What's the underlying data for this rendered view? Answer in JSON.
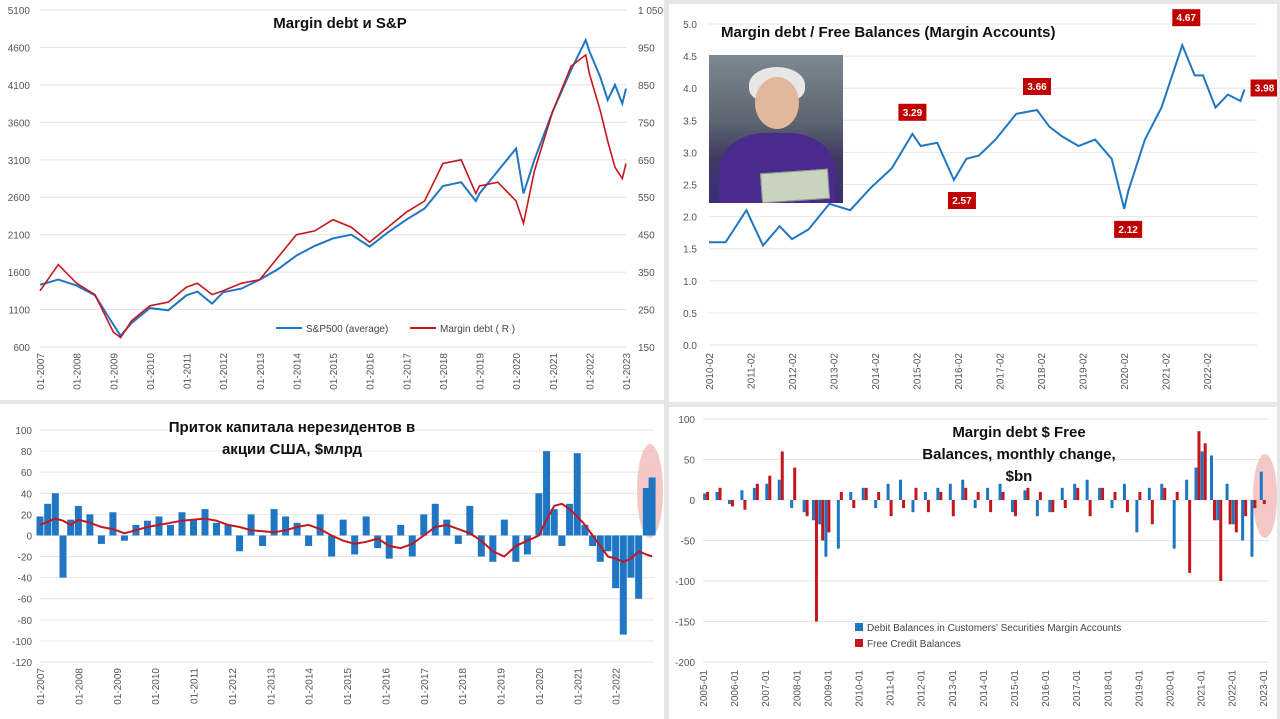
{
  "charts": {
    "margin_sp": {
      "title": "Margin debt и S&P",
      "legend": [
        "S&P500 (average)",
        "Margin debt ( R )"
      ],
      "left_ticks": [
        "600",
        "1100",
        "1600",
        "2100",
        "2600",
        "3100",
        "3600",
        "4100",
        "4600",
        "5100"
      ],
      "right_ticks": [
        "150",
        "250",
        "350",
        "450",
        "550",
        "650",
        "750",
        "850",
        "950",
        "1 050"
      ],
      "x_ticks": [
        "01-2007",
        "01-2008",
        "01-2009",
        "01-2010",
        "01-2011",
        "01-2012",
        "01-2013",
        "01-2014",
        "01-2015",
        "01-2016",
        "01-2017",
        "01-2018",
        "01-2019",
        "01-2020",
        "01-2021",
        "01-2022",
        "01-2023"
      ]
    },
    "ratio": {
      "title": "Margin debt / Free Balances (Margin Accounts)",
      "y_ticks": [
        "0.0",
        "0.5",
        "1.0",
        "1.5",
        "2.0",
        "2.5",
        "3.0",
        "3.5",
        "4.0",
        "4.5",
        "5.0"
      ],
      "x_ticks": [
        "2010-02",
        "2011-02",
        "2012-02",
        "2013-02",
        "2014-02",
        "2015-02",
        "2016-02",
        "2017-02",
        "2018-02",
        "2019-02",
        "2020-02",
        "2021-02",
        "2022-02"
      ],
      "labels": [
        "3.29",
        "2.57",
        "3.66",
        "2.12",
        "4.67",
        "3.98"
      ]
    },
    "flows": {
      "title_line1": "Приток капитала  нерезидентов в",
      "title_line2": "акции США, $млрд",
      "y_ticks": [
        "-120",
        "-100",
        "-80",
        "-60",
        "-40",
        "-20",
        "0",
        "20",
        "40",
        "60",
        "80",
        "100"
      ],
      "x_ticks": [
        "01-2007",
        "01-2008",
        "01-2009",
        "01-2010",
        "01-2011",
        "01-2012",
        "01-2013",
        "01-2014",
        "01-2015",
        "01-2016",
        "01-2017",
        "01-2018",
        "01-2019",
        "01-2020",
        "01-2021",
        "01-2022"
      ]
    },
    "change": {
      "title_line1": "Margin debt $ Free",
      "title_line2": "Balances, monthly change,",
      "title_line3": "$bn",
      "y_ticks": [
        "-200",
        "-150",
        "-100",
        "-50",
        "0",
        "50",
        "100"
      ],
      "x_ticks": [
        "2005-01",
        "2006-01",
        "2007-01",
        "2008-01",
        "2009-01",
        "2010-01",
        "2011-01",
        "2012-01",
        "2013-01",
        "2014-01",
        "2015-01",
        "2016-01",
        "2017-01",
        "2018-01",
        "2019-01",
        "2020-01",
        "2021-01",
        "2022-01",
        "2023-01"
      ],
      "legend": [
        "Debit Balances in Customers' Securities Margin Accounts",
        "Free Credit Balances"
      ]
    }
  },
  "colors": {
    "blue": "#1f77c4",
    "red": "#c4171d",
    "label_bg": "#c00000",
    "highlight": "#f2b5b5"
  },
  "chart_data": [
    {
      "type": "line",
      "title": "Margin debt и S&P",
      "x": [
        2007.0,
        2007.5,
        2008.0,
        2008.5,
        2009.0,
        2009.2,
        2009.5,
        2010.0,
        2010.5,
        2011.0,
        2011.3,
        2011.7,
        2012.0,
        2012.5,
        2013.0,
        2013.5,
        2014.0,
        2014.5,
        2015.0,
        2015.5,
        2016.0,
        2016.5,
        2017.0,
        2017.5,
        2018.0,
        2018.5,
        2018.9,
        2019.0,
        2019.5,
        2020.0,
        2020.2,
        2020.5,
        2021.0,
        2021.5,
        2021.9,
        2022.0,
        2022.3,
        2022.5,
        2022.7,
        2022.9,
        2023.0
      ],
      "series": [
        {
          "name": "S&P500 (average)",
          "axis": "left",
          "values": [
            1430,
            1500,
            1420,
            1290,
            900,
            750,
            920,
            1120,
            1090,
            1290,
            1340,
            1180,
            1330,
            1380,
            1500,
            1640,
            1820,
            1950,
            2050,
            2100,
            1940,
            2130,
            2300,
            2450,
            2750,
            2800,
            2550,
            2650,
            2950,
            3250,
            2650,
            3100,
            3750,
            4300,
            4700,
            4550,
            4200,
            3900,
            4100,
            3850,
            4050
          ]
        },
        {
          "name": "Margin debt ( R )",
          "axis": "right",
          "values": [
            300,
            370,
            320,
            290,
            190,
            175,
            220,
            260,
            270,
            310,
            320,
            290,
            300,
            320,
            330,
            390,
            450,
            460,
            490,
            470,
            430,
            470,
            510,
            540,
            640,
            650,
            560,
            580,
            590,
            540,
            480,
            620,
            780,
            900,
            930,
            880,
            780,
            700,
            630,
            600,
            640
          ]
        }
      ],
      "ylim_left": [
        600,
        5100
      ],
      "ylim_right": [
        150,
        1050
      ]
    },
    {
      "type": "line",
      "title": "Margin debt / Free Balances (Margin Accounts)",
      "x": [
        2010.1,
        2010.5,
        2011.0,
        2011.4,
        2011.8,
        2012.1,
        2012.5,
        2013.0,
        2013.5,
        2014.0,
        2014.5,
        2015.0,
        2015.2,
        2015.6,
        2016.0,
        2016.3,
        2016.6,
        2017.0,
        2017.5,
        2018.0,
        2018.3,
        2018.6,
        2019.0,
        2019.4,
        2019.8,
        2020.1,
        2020.2,
        2020.6,
        2021.0,
        2021.5,
        2021.8,
        2022.0,
        2022.3,
        2022.6,
        2022.9,
        2023.0
      ],
      "values": [
        1.6,
        1.6,
        2.1,
        1.55,
        1.85,
        1.65,
        1.8,
        2.2,
        2.1,
        2.45,
        2.75,
        3.29,
        3.1,
        3.15,
        2.57,
        2.9,
        2.95,
        3.2,
        3.6,
        3.66,
        3.4,
        3.25,
        3.1,
        3.2,
        2.9,
        2.12,
        2.4,
        3.2,
        3.7,
        4.67,
        4.2,
        4.2,
        3.7,
        3.9,
        3.8,
        3.98
      ],
      "labels": [
        "3.29",
        "2.57",
        "3.66",
        "2.12",
        "4.67",
        "3.98"
      ],
      "ylim": [
        0,
        5
      ]
    },
    {
      "type": "bar",
      "title": "Приток капитала  нерезидентов в акции США, $млрд",
      "x": [
        2007.0,
        2007.2,
        2007.4,
        2007.6,
        2007.8,
        2008.0,
        2008.3,
        2008.6,
        2008.9,
        2009.2,
        2009.5,
        2009.8,
        2010.1,
        2010.4,
        2010.7,
        2011.0,
        2011.3,
        2011.6,
        2011.9,
        2012.2,
        2012.5,
        2012.8,
        2013.1,
        2013.4,
        2013.7,
        2014.0,
        2014.3,
        2014.6,
        2014.9,
        2015.2,
        2015.5,
        2015.8,
        2016.1,
        2016.4,
        2016.7,
        2017.0,
        2017.3,
        2017.6,
        2017.9,
        2018.2,
        2018.5,
        2018.8,
        2019.1,
        2019.4,
        2019.7,
        2020.0,
        2020.2,
        2020.4,
        2020.6,
        2020.8,
        2021.0,
        2021.2,
        2021.4,
        2021.6,
        2021.8,
        2022.0,
        2022.2,
        2022.4,
        2022.6,
        2022.8,
        2022.95
      ],
      "values": [
        18,
        30,
        40,
        -40,
        15,
        28,
        20,
        -8,
        22,
        -5,
        10,
        14,
        18,
        10,
        22,
        15,
        25,
        12,
        10,
        -15,
        20,
        -10,
        25,
        18,
        12,
        -10,
        20,
        -20,
        15,
        -18,
        18,
        -12,
        -22,
        10,
        -20,
        20,
        30,
        15,
        -8,
        28,
        -20,
        -25,
        15,
        -25,
        -18,
        40,
        80,
        25,
        -10,
        30,
        78,
        10,
        -10,
        -25,
        -15,
        -50,
        -94,
        -40,
        -60,
        45,
        55
      ],
      "series_line": [
        10,
        13,
        16,
        14,
        10,
        15,
        12,
        8,
        6,
        2,
        5,
        8,
        10,
        12,
        14,
        15,
        16,
        14,
        10,
        8,
        5,
        4,
        3,
        5,
        8,
        10,
        6,
        0,
        -5,
        -8,
        -6,
        -3,
        -10,
        -12,
        -8,
        0,
        8,
        10,
        6,
        2,
        -5,
        -15,
        -20,
        -10,
        -5,
        0,
        15,
        28,
        30,
        25,
        18,
        10,
        0,
        -10,
        -20,
        -22,
        -25,
        -22,
        -15,
        -18,
        -20
      ],
      "ylim": [
        -120,
        100
      ]
    },
    {
      "type": "bar",
      "title": "Margin debt $ Free Balances, monthly change, $bn",
      "x": [
        2005.1,
        2005.5,
        2005.9,
        2006.3,
        2006.7,
        2007.1,
        2007.5,
        2007.9,
        2008.3,
        2008.6,
        2008.8,
        2009.0,
        2009.4,
        2009.8,
        2010.2,
        2010.6,
        2011.0,
        2011.4,
        2011.8,
        2012.2,
        2012.6,
        2013.0,
        2013.4,
        2013.8,
        2014.2,
        2014.6,
        2015.0,
        2015.4,
        2015.8,
        2016.2,
        2016.6,
        2017.0,
        2017.4,
        2017.8,
        2018.2,
        2018.6,
        2019.0,
        2019.4,
        2019.8,
        2020.2,
        2020.6,
        2020.9,
        2021.1,
        2021.4,
        2021.6,
        2021.9,
        2022.1,
        2022.4,
        2022.7,
        2023.0
      ],
      "series": [
        {
          "name": "Debit Balances in Customers' Securities Margin Accounts",
          "values": [
            8,
            10,
            -5,
            12,
            15,
            20,
            25,
            -10,
            -15,
            -25,
            -30,
            -70,
            -60,
            10,
            15,
            -10,
            20,
            25,
            -15,
            10,
            15,
            20,
            25,
            -10,
            15,
            20,
            -15,
            12,
            -20,
            -15,
            15,
            20,
            25,
            15,
            -10,
            20,
            -40,
            15,
            20,
            -60,
            25,
            40,
            60,
            55,
            -25,
            20,
            -30,
            -50,
            -70,
            35
          ]
        },
        {
          "name": "Free Credit Balances",
          "values": [
            10,
            15,
            -8,
            -12,
            20,
            30,
            60,
            40,
            -20,
            -150,
            -50,
            -40,
            10,
            -10,
            15,
            10,
            -20,
            -10,
            15,
            -15,
            10,
            -20,
            15,
            10,
            -15,
            10,
            -20,
            15,
            10,
            -15,
            -10,
            15,
            -20,
            15,
            10,
            -15,
            10,
            -30,
            15,
            10,
            -90,
            85,
            70,
            -25,
            -100,
            -30,
            -40,
            -20,
            -10,
            -5
          ]
        }
      ],
      "ylim": [
        -200,
        100
      ]
    }
  ]
}
